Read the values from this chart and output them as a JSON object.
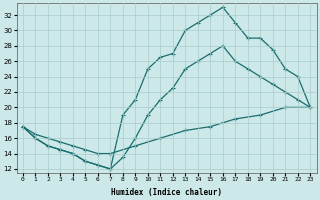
{
  "xlabel": "Humidex (Indice chaleur)",
  "bg_color": "#cce8e8",
  "grid_color": "#aacccc",
  "line_color": "#1a6e6e",
  "xlim": [
    -0.5,
    23.5
  ],
  "ylim": [
    11.5,
    33.5
  ],
  "xticks": [
    0,
    1,
    2,
    3,
    4,
    5,
    6,
    7,
    8,
    9,
    10,
    11,
    12,
    13,
    14,
    15,
    16,
    17,
    18,
    19,
    20,
    21,
    22,
    23
  ],
  "yticks": [
    12,
    14,
    16,
    18,
    20,
    22,
    24,
    26,
    28,
    30,
    32
  ],
  "curve1_x": [
    0,
    1,
    2,
    3,
    4,
    5,
    6,
    7,
    8,
    9,
    10,
    11,
    12,
    13,
    14,
    15,
    16,
    17,
    18,
    19,
    20,
    21,
    22,
    23
  ],
  "curve1_y": [
    17.5,
    16,
    15,
    14.5,
    14,
    13,
    12.5,
    12,
    13.5,
    16,
    19,
    21,
    22.5,
    25,
    26,
    27,
    28,
    26,
    25,
    24,
    23,
    22,
    21,
    20
  ],
  "curve2_x": [
    0,
    1,
    2,
    3,
    4,
    5,
    6,
    7,
    8,
    9,
    10,
    11,
    12,
    13,
    14,
    15,
    16,
    17,
    18,
    19,
    20,
    21,
    22,
    23
  ],
  "curve2_y": [
    17.5,
    16,
    15,
    14.5,
    14,
    13,
    12.5,
    12,
    19,
    21,
    25,
    26.5,
    27,
    30,
    31,
    32,
    33,
    31,
    29,
    29,
    27.5,
    25,
    24,
    20
  ],
  "curve3_x": [
    0,
    1,
    2,
    3,
    4,
    5,
    6,
    7,
    9,
    11,
    13,
    15,
    17,
    19,
    21,
    23
  ],
  "curve3_y": [
    17.5,
    16.5,
    16,
    15.5,
    15,
    14.5,
    14,
    14,
    15,
    16,
    17,
    17.5,
    18.5,
    19,
    20,
    20
  ]
}
